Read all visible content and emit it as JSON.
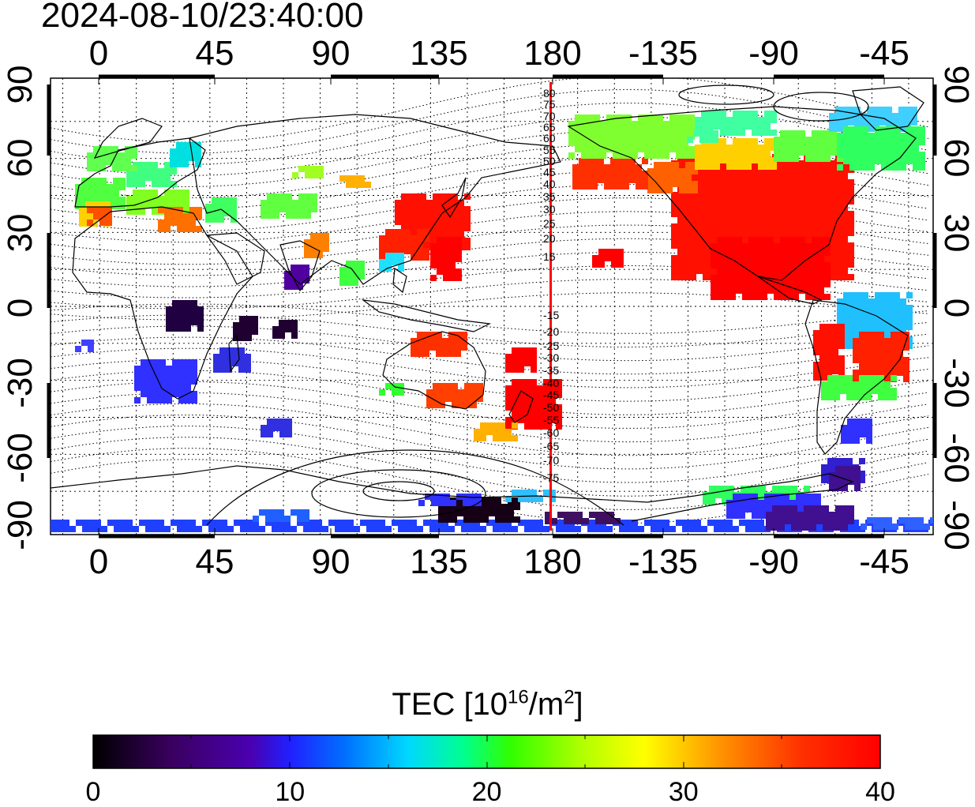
{
  "title": "2024-08-10/23:40:00",
  "map": {
    "top_axis_labels": [
      "0",
      "45",
      "90",
      "135",
      "180",
      "-135",
      "-90",
      "-45"
    ],
    "bottom_axis_labels": [
      "0",
      "45",
      "90",
      "135",
      "180",
      "-135",
      "-90",
      "-45"
    ],
    "left_axis_labels": [
      "90",
      "60",
      "30",
      "0",
      "-30",
      "-60",
      "-90"
    ],
    "right_axis_labels": [
      "90",
      "60",
      "30",
      "0",
      "-30",
      "-60",
      "-90"
    ],
    "contour_labels_north": [
      "80",
      "75",
      "70",
      "65",
      "60",
      "55",
      "50",
      "45",
      "40",
      "35",
      "30",
      "25",
      "20",
      "15"
    ],
    "contour_labels_south": [
      "-15",
      "-20",
      "-25",
      "-30",
      "-35",
      "-40",
      "-45",
      "-50",
      "-55",
      "-60",
      "-65",
      "-70",
      "-75"
    ],
    "terminator_longitude": 184,
    "terminator_color": "#ff0000"
  },
  "colorbar": {
    "title_main": "TEC  [10",
    "title_sup1": "16",
    "title_mid": "/m",
    "title_sup2": "2",
    "title_end": "]",
    "labels": [
      "0",
      "10",
      "20",
      "30",
      "40"
    ],
    "min": 0,
    "max": 40,
    "gradient_stops": [
      "#000000",
      "#3a0060",
      "#5000a0",
      "#2020ff",
      "#0080ff",
      "#00e0e0",
      "#00ff80",
      "#40ff00",
      "#c0ff00",
      "#ffff00",
      "#ff8000",
      "#ff2000",
      "#ff0000"
    ]
  }
}
